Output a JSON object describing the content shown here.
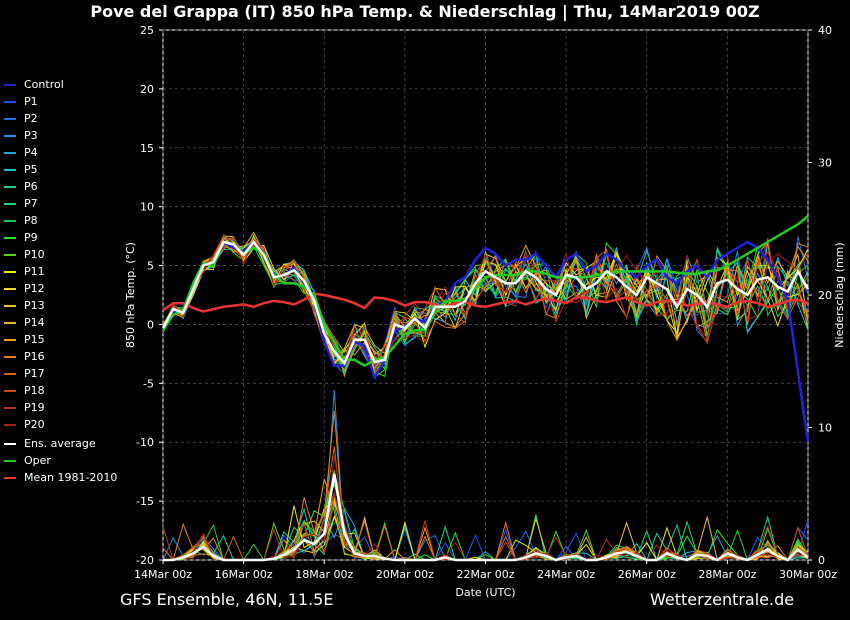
{
  "title": "Pove del Grappa  (IT)  850 hPa Temp. & Niederschlag | Thu, 14Mar2019 00Z",
  "footer_left": "GFS Ensemble, 46N, 11.5E",
  "footer_right": "Wetterzentrale.de",
  "legend": [
    {
      "label": "Control",
      "color": "#2222dd"
    },
    {
      "label": "P1",
      "color": "#1e50ff"
    },
    {
      "label": "P2",
      "color": "#1e6ef0"
    },
    {
      "label": "P3",
      "color": "#1e8ce6"
    },
    {
      "label": "P4",
      "color": "#18aadc"
    },
    {
      "label": "P5",
      "color": "#14c8c8"
    },
    {
      "label": "P6",
      "color": "#14d2a0"
    },
    {
      "label": "P7",
      "color": "#14dc78"
    },
    {
      "label": "P8",
      "color": "#14d250"
    },
    {
      "label": "P9",
      "color": "#28e628"
    },
    {
      "label": "P10",
      "color": "#50dc14"
    },
    {
      "label": "P11",
      "color": "#f0f000"
    },
    {
      "label": "P12",
      "color": "#f0dc28"
    },
    {
      "label": "P13",
      "color": "#e6c81e"
    },
    {
      "label": "P14",
      "color": "#e6b414"
    },
    {
      "label": "P15",
      "color": "#f0a014"
    },
    {
      "label": "P16",
      "color": "#e68214"
    },
    {
      "label": "P17",
      "color": "#dc6414"
    },
    {
      "label": "P18",
      "color": "#d24614"
    },
    {
      "label": "P19",
      "color": "#be3214"
    },
    {
      "label": "P20",
      "color": "#a01e14"
    },
    {
      "label": "Ens. average",
      "color": "#ffffff"
    },
    {
      "label": "Oper",
      "color": "#22cc22"
    },
    {
      "label": "Mean 1981-2010",
      "color": "#ee3333"
    }
  ],
  "chart_data": {
    "type": "line",
    "xlabel": "Date (UTC)",
    "ylabel": "850 hPa Temp. (°C)",
    "y2label": "Niederschlag (mm)",
    "ylim": [
      -20,
      25
    ],
    "y2lim": [
      0,
      40
    ],
    "yticks": [
      -20,
      -15,
      -10,
      -5,
      0,
      5,
      10,
      15,
      20,
      25
    ],
    "y2ticks": [
      0,
      10,
      20,
      30,
      40
    ],
    "xticks": [
      "14Mar 00z",
      "16Mar 00z",
      "18Mar 00z",
      "20Mar 00z",
      "22Mar 00z",
      "24Mar 00z",
      "26Mar 00z",
      "28Mar 00z",
      "30Mar 00z"
    ],
    "x_step_hours": 6,
    "grid": true,
    "series_temp": {
      "Mean 1981-2010": [
        1.2,
        1.8,
        1.8,
        1.4,
        1.1,
        1.3,
        1.5,
        1.6,
        1.7,
        1.5,
        1.8,
        2.0,
        1.9,
        1.7,
        2.1,
        2.6,
        2.5,
        2.3,
        2.1,
        1.8,
        1.4,
        2.3,
        2.2,
        2.0,
        1.6,
        1.9,
        1.9,
        1.7,
        1.5,
        1.8,
        1.9,
        1.6,
        1.5,
        1.7,
        1.9,
        2.0,
        1.7,
        2.0,
        2.2,
        2.0,
        1.8,
        2.3,
        2.3,
        2.0,
        1.9,
        2.1,
        2.3,
        1.9,
        1.6,
        1.9,
        2.0,
        1.9,
        1.6,
        1.7,
        1.9,
        1.7,
        1.5,
        1.9,
        2.0,
        1.8,
        1.5,
        1.7,
        2.0,
        2.1,
        1.8
      ],
      "Ens. average": [
        -0.3,
        1.3,
        1.0,
        3.0,
        5.0,
        5.3,
        7.0,
        6.8,
        5.9,
        7.0,
        5.9,
        4.0,
        4.2,
        4.6,
        3.7,
        2.0,
        -0.8,
        -2.3,
        -3.3,
        -1.3,
        -1.3,
        -3.2,
        -3.0,
        0.0,
        -0.3,
        0.5,
        -0.3,
        1.5,
        1.5,
        1.5,
        2.0,
        3.5,
        4.5,
        4.0,
        3.5,
        3.5,
        4.5,
        4.0,
        3.0,
        2.5,
        4.2,
        4.0,
        3.0,
        3.5,
        4.5,
        4.0,
        3.2,
        2.5,
        4.0,
        3.5,
        3.0,
        1.5,
        3.0,
        2.5,
        1.5,
        3.5,
        3.8,
        3.0,
        2.5,
        3.8,
        4.0,
        3.2,
        2.8,
        4.5,
        3.0
      ],
      "Oper": [
        -0.5,
        0.8,
        1.2,
        3.5,
        5.2,
        5.0,
        7.0,
        6.8,
        6.0,
        6.5,
        6.0,
        4.2,
        3.5,
        3.5,
        3.2,
        2.5,
        0.0,
        -1.5,
        -3.0,
        -3.0,
        -3.5,
        -3.0,
        -2.8,
        -1.8,
        -0.8,
        -0.5,
        -0.5,
        1.0,
        2.0,
        2.0,
        2.2,
        3.0,
        4.0,
        4.2,
        4.2,
        4.2,
        4.5,
        4.5,
        4.3,
        4.0,
        4.0,
        4.0,
        4.0,
        4.2,
        4.3,
        4.5,
        4.5,
        4.5,
        4.5,
        4.5,
        4.5,
        4.4,
        4.3,
        4.3,
        4.5,
        4.6,
        5.0,
        5.5,
        6.0,
        6.5,
        7.0,
        7.5,
        8.0,
        8.5,
        9.2
      ],
      "Control": [
        -0.3,
        1.0,
        1.2,
        3.2,
        5.0,
        5.3,
        7.0,
        6.5,
        6.2,
        7.0,
        6.0,
        4.0,
        4.2,
        4.8,
        3.5,
        2.0,
        -1.5,
        -3.5,
        -3.5,
        -1.5,
        -1.8,
        -4.5,
        -3.0,
        -0.5,
        -0.2,
        0.5,
        0.2,
        1.5,
        2.0,
        3.5,
        4.0,
        5.5,
        6.5,
        6.0,
        5.0,
        5.5,
        5.5,
        6.0,
        5.0,
        4.0,
        5.5,
        6.0,
        4.5,
        5.0,
        6.0,
        5.5,
        4.5,
        4.0,
        5.0,
        5.5,
        4.0,
        3.5,
        4.5,
        5.0,
        4.0,
        5.5,
        6.0,
        6.5,
        7.0,
        6.5,
        5.5,
        4.0,
        2.0,
        -4.0,
        -10.0
      ]
    },
    "precipitation_mm": {
      "Ens. average": [
        0,
        0,
        0.2,
        0.5,
        1.0,
        0.3,
        0,
        0,
        0,
        0,
        0,
        0.1,
        0.4,
        0.8,
        1.5,
        1.2,
        2.0,
        6.5,
        2.0,
        0.5,
        0.3,
        0.3,
        0.1,
        0,
        0,
        0,
        0,
        0,
        0.2,
        0,
        0,
        0,
        0,
        0,
        0,
        0,
        0.2,
        0.5,
        0.3,
        0,
        0.2,
        0.3,
        0,
        0,
        0.2,
        0.5,
        0.6,
        0.3,
        0,
        0,
        0.5,
        0.2,
        0,
        0.4,
        0.3,
        0,
        0.5,
        0.2,
        0,
        0.4,
        0.8,
        0.3,
        0,
        0.8,
        0.2
      ]
    }
  }
}
